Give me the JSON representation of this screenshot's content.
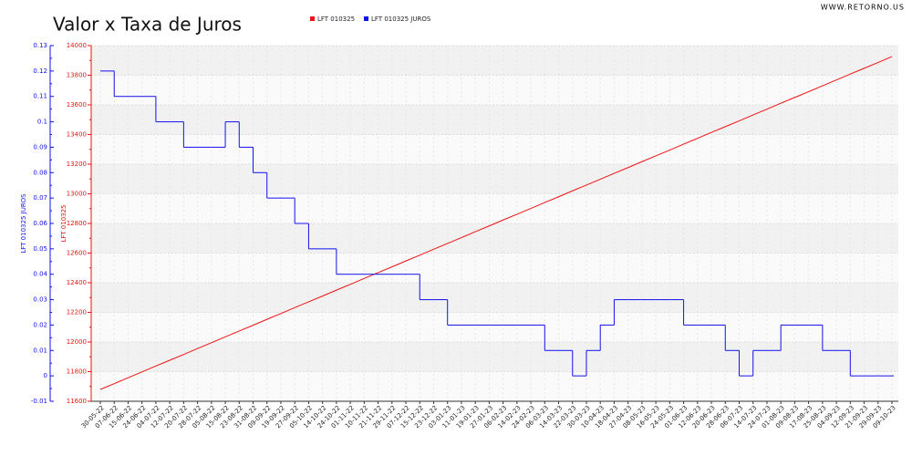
{
  "chart_data": {
    "type": "line",
    "title": "Valor x Taxa de Juros",
    "watermark": "WWW.RETORNO.US",
    "y_label": "LFT 010325",
    "y2_label": "LFT 010325 JUROS",
    "categories": [
      "30-05-22",
      "07-06-22",
      "15-06-22",
      "24-06-22",
      "04-07-22",
      "12-07-22",
      "20-07-22",
      "28-07-22",
      "05-08-22",
      "15-08-22",
      "23-08-22",
      "31-08-22",
      "09-09-22",
      "19-09-22",
      "27-09-22",
      "05-10-22",
      "14-10-22",
      "24-10-22",
      "01-11-22",
      "10-11-22",
      "21-11-22",
      "29-11-22",
      "07-12-22",
      "15-12-22",
      "23-12-22",
      "03-01-23",
      "11-01-23",
      "19-01-23",
      "27-01-23",
      "06-02-23",
      "14-02-23",
      "24-02-23",
      "06-03-23",
      "14-03-23",
      "22-03-23",
      "30-03-23",
      "10-04-23",
      "18-04-23",
      "27-04-23",
      "08-05-23",
      "16-05-23",
      "24-05-23",
      "01-06-23",
      "12-06-23",
      "20-06-23",
      "28-06-23",
      "06-07-23",
      "14-07-23",
      "24-07-23",
      "01-08-23",
      "09-08-23",
      "17-08-23",
      "25-08-23",
      "04-09-23",
      "12-09-23",
      "21-09-23",
      "29-09-23",
      "09-10-23"
    ],
    "series": [
      {
        "name": "LFT 010325",
        "color": "#ee1111",
        "axis": "y",
        "step": false,
        "values": [
          11680,
          11719,
          11759,
          11798,
          11838,
          11877,
          11916,
          11956,
          11995,
          12035,
          12074,
          12113,
          12153,
          12192,
          12232,
          12271,
          12310,
          12350,
          12389,
          12429,
          12468,
          12507,
          12547,
          12586,
          12626,
          12665,
          12704,
          12744,
          12783,
          12823,
          12862,
          12901,
          12941,
          12980,
          13020,
          13059,
          13098,
          13138,
          13177,
          13217,
          13256,
          13295,
          13335,
          13374,
          13414,
          13453,
          13492,
          13532,
          13571,
          13611,
          13650,
          13689,
          13729,
          13768,
          13808,
          13847,
          13886,
          13926
        ]
      },
      {
        "name": "LFT 010325 JUROS",
        "color": "#1111ee",
        "axis": "y2",
        "step": true,
        "values": [
          0.12,
          0.11,
          0.11,
          0.11,
          0.1,
          0.1,
          0.09,
          0.09,
          0.09,
          0.1,
          0.09,
          0.08,
          0.07,
          0.07,
          0.06,
          0.05,
          0.05,
          0.04,
          0.04,
          0.04,
          0.04,
          0.04,
          0.04,
          0.03,
          0.03,
          0.02,
          0.02,
          0.02,
          0.02,
          0.02,
          0.02,
          0.02,
          0.01,
          0.01,
          0,
          0.01,
          0.02,
          0.03,
          0.03,
          0.03,
          0.03,
          0.03,
          0.02,
          0.02,
          0.02,
          0.01,
          0,
          0.01,
          0.01,
          0.02,
          0.02,
          0.02,
          0.01,
          0.01,
          0,
          0,
          0,
          0
        ]
      }
    ],
    "ylim": [
      11600,
      14000
    ],
    "yticks": [
      11600,
      11800,
      12000,
      12200,
      12400,
      12600,
      12800,
      13000,
      13200,
      13400,
      13600,
      13800,
      14000
    ],
    "y2lim": [
      -0.01,
      0.13
    ],
    "y2ticks": [
      -0.01,
      0,
      0.01,
      0.02,
      0.03,
      0.04,
      0.05,
      0.06,
      0.07,
      0.08,
      0.09,
      0.1,
      0.11,
      0.12,
      0.13
    ],
    "grid": true
  }
}
